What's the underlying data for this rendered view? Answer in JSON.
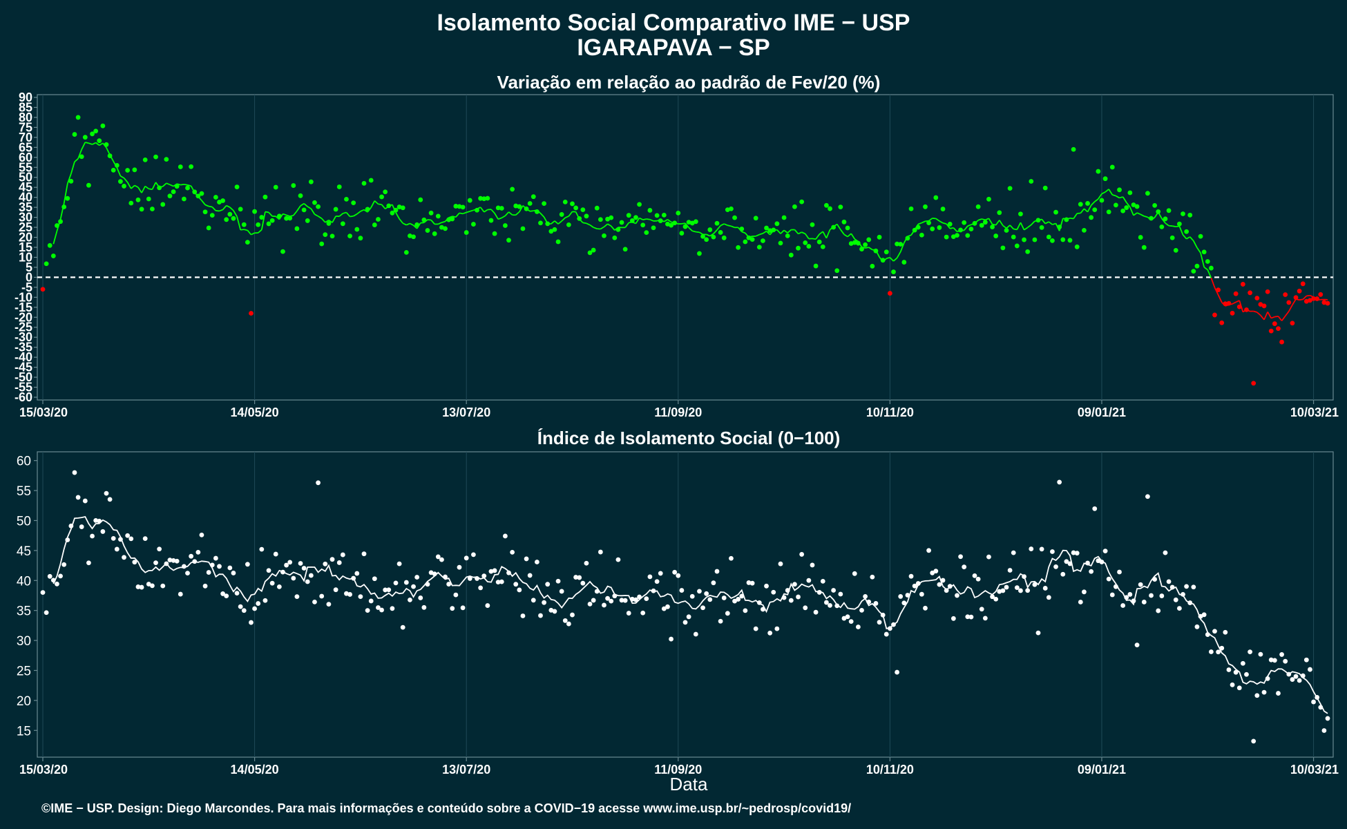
{
  "title": "Isolamento Social Comparativo IME − USP",
  "subtitle": "IGARAPAVA − SP",
  "footer": "©IME − USP. Design: Diego Marcondes. Para mais informações e conteúdo sobre a COVID−19 acesse www.ime.usp.br/~pedrosp/covid19/",
  "colors": {
    "background": "#022833",
    "positive": "#00ff00",
    "negative": "#ff0000",
    "index": "#ffffff",
    "grid": "#1f4a57",
    "axis": "#6b8a92"
  },
  "chart_data": [
    {
      "type": "scatter",
      "title": "Variação em relação ao padrão de Fev/20 (%)",
      "xlabel": "",
      "ylabel": "",
      "x_range": [
        "2020-03-15",
        "2021-03-14"
      ],
      "x_ticks": [
        {
          "date": "2020-03-15",
          "label": "15/03/20"
        },
        {
          "date": "2020-05-14",
          "label": "14/05/20"
        },
        {
          "date": "2020-07-13",
          "label": "13/07/20"
        },
        {
          "date": "2020-09-11",
          "label": "11/09/20"
        },
        {
          "date": "2020-11-10",
          "label": "10/11/20"
        },
        {
          "date": "2021-01-09",
          "label": "09/01/21"
        },
        {
          "date": "2021-03-10",
          "label": "10/03/21"
        }
      ],
      "y_ticks": [
        "90",
        "85",
        "80",
        "75",
        "70",
        "65",
        "60",
        "55",
        "50",
        "45",
        "40",
        "35",
        "30",
        "25",
        "20",
        "15",
        "10",
        "5",
        "0",
        "-5",
        "-10",
        "-15",
        "-20",
        "-25",
        "-30",
        "-35",
        "-40",
        "-45",
        "-50",
        "-55",
        "-60"
      ],
      "ylim": [
        -60,
        90
      ],
      "reference_line": 0,
      "legend": "none",
      "grid": true,
      "series_note_colors": "green points above 0, red points below 0; line shows 7-day moving average",
      "key_points": [
        {
          "x": "2020-03-15",
          "y": -6
        },
        {
          "x": "2020-03-25",
          "y": 80
        },
        {
          "x": "2020-04-05",
          "y": 56
        },
        {
          "x": "2020-05-13",
          "y": -18
        },
        {
          "x": "2020-11-10",
          "y": -8
        },
        {
          "x": "2020-12-20",
          "y": 48
        },
        {
          "x": "2021-01-01",
          "y": 64
        },
        {
          "x": "2021-02-21",
          "y": -53
        },
        {
          "x": "2021-03-14",
          "y": -13
        }
      ]
    },
    {
      "type": "scatter",
      "title": "Índice de Isolamento Social (0−100)",
      "xlabel": "Data",
      "ylabel": "",
      "x_range": [
        "2020-03-15",
        "2021-03-14"
      ],
      "x_ticks": [
        {
          "date": "2020-03-15",
          "label": "15/03/20"
        },
        {
          "date": "2020-05-14",
          "label": "14/05/20"
        },
        {
          "date": "2020-07-13",
          "label": "13/07/20"
        },
        {
          "date": "2020-09-11",
          "label": "11/09/20"
        },
        {
          "date": "2020-11-10",
          "label": "10/11/20"
        },
        {
          "date": "2021-01-09",
          "label": "09/01/21"
        },
        {
          "date": "2021-03-10",
          "label": "10/03/21"
        }
      ],
      "y_ticks": [
        "60",
        "55",
        "50",
        "45",
        "40",
        "35",
        "30",
        "25",
        "20",
        "15"
      ],
      "ylim": [
        11,
        61
      ],
      "legend": "none",
      "grid": true,
      "key_points": [
        {
          "x": "2020-03-15",
          "y": 38
        },
        {
          "x": "2020-03-24",
          "y": 58
        },
        {
          "x": "2020-05-13",
          "y": 33
        },
        {
          "x": "2020-06-01",
          "y": 56.3
        },
        {
          "x": "2020-11-10",
          "y": 32
        },
        {
          "x": "2020-11-12",
          "y": 24.7
        },
        {
          "x": "2020-12-28",
          "y": 56.4
        },
        {
          "x": "2021-01-22",
          "y": 54
        },
        {
          "x": "2021-02-21",
          "y": 13.2
        },
        {
          "x": "2021-03-14",
          "y": 17
        }
      ]
    }
  ]
}
